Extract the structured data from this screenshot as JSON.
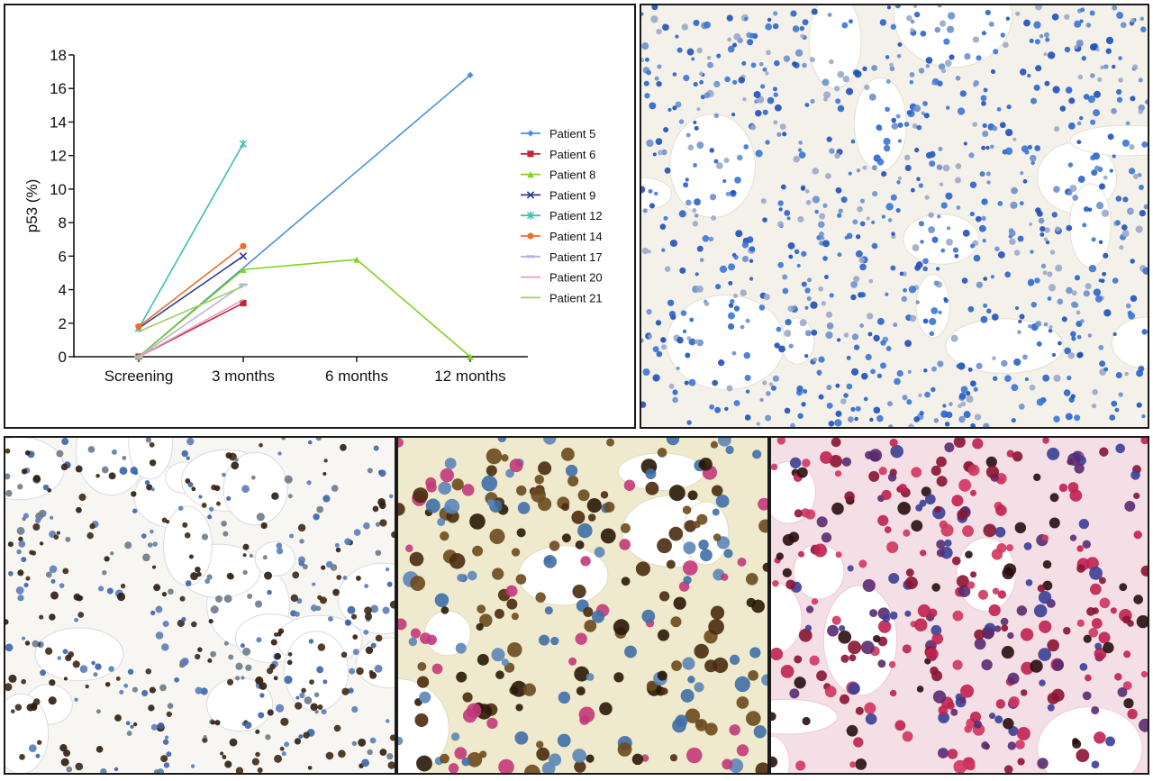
{
  "chart_data": {
    "type": "line",
    "ylabel": "p53 (%)",
    "xlabel": "",
    "categories": [
      "Screening",
      "3 months",
      "6 months",
      "12 months"
    ],
    "ylim": [
      0,
      18
    ],
    "yticks": [
      0,
      2,
      4,
      6,
      8,
      10,
      12,
      14,
      16,
      18
    ],
    "grid": false,
    "legend_position": "right",
    "series": [
      {
        "name": "Patient 5",
        "color": "#4a90d9",
        "marker": "diamond",
        "values": [
          0,
          null,
          null,
          16.8
        ]
      },
      {
        "name": "Patient 6",
        "color": "#c0283a",
        "marker": "square",
        "values": [
          0,
          3.2,
          null,
          null
        ]
      },
      {
        "name": "Patient 8",
        "color": "#7ed321",
        "marker": "triangle",
        "values": [
          0,
          5.2,
          5.8,
          0
        ]
      },
      {
        "name": "Patient 9",
        "color": "#2e3a8c",
        "marker": "x",
        "values": [
          1.7,
          6.0,
          null,
          null
        ]
      },
      {
        "name": "Patient 12",
        "color": "#3bbfb0",
        "marker": "star",
        "values": [
          1.7,
          12.7,
          null,
          null
        ]
      },
      {
        "name": "Patient 14",
        "color": "#e8702a",
        "marker": "circle",
        "values": [
          1.8,
          6.6,
          null,
          null
        ]
      },
      {
        "name": "Patient 17",
        "color": "#b7b3e3",
        "marker": "bar",
        "values": [
          0,
          4.3,
          null,
          null
        ]
      },
      {
        "name": "Patient 20",
        "color": "#e79cc8",
        "marker": "none",
        "values": [
          0,
          3.4,
          null,
          null
        ]
      },
      {
        "name": "Patient 21",
        "color": "#9ccf6b",
        "marker": "none",
        "values": [
          1.5,
          4.2,
          null,
          null
        ]
      }
    ]
  },
  "images": [
    {
      "id": "histology-top-right",
      "description": ""
    },
    {
      "id": "histology-bottom-left",
      "description": ""
    },
    {
      "id": "histology-bottom-middle",
      "description": ""
    },
    {
      "id": "histology-bottom-right",
      "description": ""
    }
  ]
}
